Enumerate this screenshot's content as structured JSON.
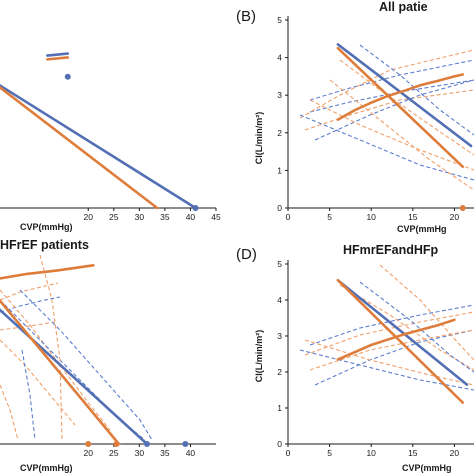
{
  "colors": {
    "blue": "#5470b4",
    "orange": "#de7d3b",
    "ci_blue": "#5c7ecf",
    "ci_orange": "#f0a06a",
    "axis": "#1a1a1a"
  },
  "panels": {
    "A": {
      "xlabel": "CVP(mmHg)"
    },
    "B": {
      "letter": "(B)",
      "title": "All patie",
      "xlabel": "CVP(mmHg",
      "ylabel": "CI(L/min/m²)"
    },
    "C": {
      "title": "HFrEF patients",
      "xlabel": "CVP(mmHg)"
    },
    "D": {
      "letter": "(D)",
      "title": "HFmrEFandHFp",
      "xlabel": "CVP(mmHg",
      "ylabel": "CI(L/min/m²)"
    }
  },
  "chart_data": [
    {
      "panel": "A",
      "type": "line",
      "x_ticks": [
        "20",
        "25",
        "30",
        "35",
        "40",
        "45"
      ],
      "xlabel": "CVP(mmHg)",
      "xlim": [
        0,
        45
      ],
      "series": [
        {
          "color": "blue",
          "x": [
            0,
            41
          ],
          "y": [
            3.4,
            0
          ]
        },
        {
          "color": "orange",
          "x": [
            0,
            33.5
          ],
          "y": [
            3.4,
            0
          ]
        },
        {
          "color": "blue",
          "x": [
            12,
            16
          ],
          "y": [
            3.95,
            4.0
          ]
        },
        {
          "color": "orange",
          "x": [
            12,
            16
          ],
          "y": [
            3.85,
            3.9
          ]
        }
      ],
      "markers": [
        {
          "color": "blue",
          "x": 16,
          "y": 3.4
        },
        {
          "color": "blue",
          "x": 41,
          "y": 0
        }
      ]
    },
    {
      "panel": "B",
      "type": "line",
      "x_ticks": [
        "0",
        "5",
        "10",
        "15",
        "20"
      ],
      "y_ticks": [
        "0",
        "1",
        "2",
        "3",
        "4",
        "5"
      ],
      "xlabel": "CVP(mmHg",
      "ylabel": "CI(L/min/m²)",
      "ylim": [
        0,
        5
      ],
      "series": [
        {
          "color": "blue",
          "x": [
            6,
            22
          ],
          "y": [
            4.35,
            1.65
          ]
        },
        {
          "color": "orange",
          "x": [
            6,
            21
          ],
          "y": [
            4.25,
            1.1
          ]
        },
        {
          "color": "orange",
          "x": [
            6,
            8,
            10,
            12,
            14,
            16,
            18,
            20,
            21
          ],
          "y": [
            2.35,
            2.6,
            2.8,
            2.98,
            3.12,
            3.27,
            3.38,
            3.5,
            3.55
          ]
        }
      ],
      "markers": [
        {
          "color": "orange",
          "x": 21,
          "y": 0
        }
      ]
    },
    {
      "panel": "C",
      "type": "line",
      "x_ticks": [
        "20",
        "25",
        "30",
        "35",
        "40"
      ],
      "xlabel": "CVP(mmHg)",
      "series": [
        {
          "color": "blue",
          "x": [
            2,
            31.5
          ],
          "y": [
            4.0,
            0
          ]
        },
        {
          "color": "orange",
          "x": [
            2,
            26
          ],
          "y": [
            4.3,
            0
          ]
        },
        {
          "color": "orange",
          "x": [
            2,
            8,
            14,
            21
          ],
          "y": [
            4.8,
            4.95,
            5.05,
            5.2
          ]
        }
      ],
      "markers": [
        {
          "color": "orange",
          "x": 20,
          "y": 0
        },
        {
          "color": "orange",
          "x": 25.5,
          "y": 0
        },
        {
          "color": "blue",
          "x": 31.5,
          "y": 0
        },
        {
          "color": "blue",
          "x": 39,
          "y": 0
        }
      ]
    },
    {
      "panel": "D",
      "type": "line",
      "x_ticks": [
        "0",
        "5",
        "10",
        "15",
        "20"
      ],
      "y_ticks": [
        "0",
        "1",
        "2",
        "3",
        "4",
        "5"
      ],
      "xlabel": "CVP(mmHg",
      "ylabel": "CI(L/min/m²)",
      "ylim": [
        0,
        5
      ],
      "series": [
        {
          "color": "blue",
          "x": [
            6,
            21.5
          ],
          "y": [
            4.55,
            1.65
          ]
        },
        {
          "color": "orange",
          "x": [
            6,
            21
          ],
          "y": [
            4.55,
            1.15
          ]
        },
        {
          "color": "orange",
          "x": [
            6,
            10,
            14,
            18,
            20
          ],
          "y": [
            2.35,
            2.75,
            3.05,
            3.3,
            3.45
          ]
        }
      ]
    }
  ]
}
